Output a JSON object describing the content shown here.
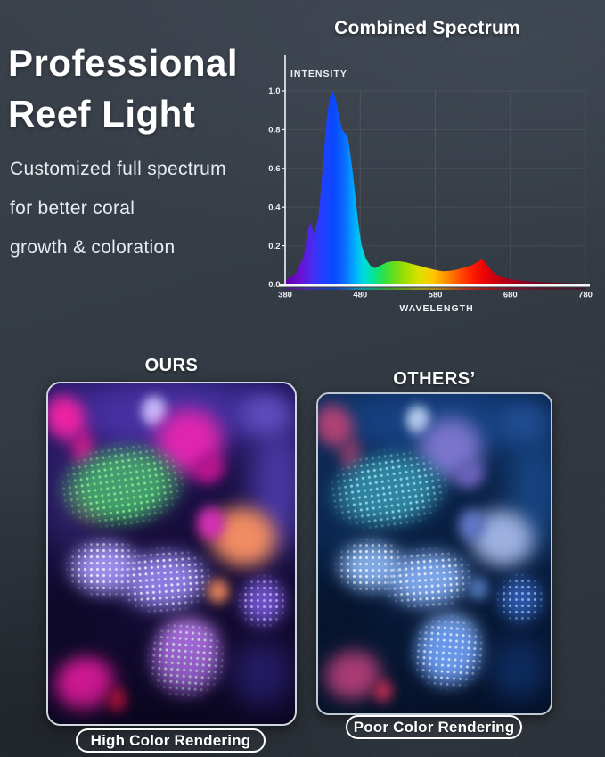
{
  "headline": {
    "line1": "Professional",
    "line2": "Reef Light"
  },
  "subtitle": [
    "Customized full spectrum",
    "for better coral",
    "growth & coloration"
  ],
  "chart_data": {
    "type": "area",
    "title": "Combined Spectrum",
    "xlabel": "WAVELENGTH",
    "ylabel": "INTENSITY",
    "xlim": [
      380,
      780
    ],
    "ylim": [
      0.0,
      1.0
    ],
    "xticks": [
      "380",
      "480",
      "580",
      "680",
      "780"
    ],
    "yticks": [
      "0.0",
      "0.2",
      "0.4",
      "0.6",
      "0.8",
      "1.0"
    ],
    "grid": "faint white gridlines",
    "legend": "none",
    "x": [
      380,
      395,
      405,
      410,
      414,
      418,
      424,
      428,
      432,
      436,
      440,
      444,
      448,
      452,
      456,
      460,
      463,
      466,
      470,
      474,
      478,
      482,
      488,
      494,
      500,
      508,
      516,
      524,
      532,
      540,
      550,
      560,
      570,
      580,
      590,
      600,
      610,
      620,
      628,
      636,
      642,
      646,
      652,
      658,
      666,
      674,
      684,
      700,
      720,
      750,
      780
    ],
    "y": [
      0.02,
      0.06,
      0.15,
      0.28,
      0.32,
      0.26,
      0.34,
      0.5,
      0.7,
      0.88,
      0.97,
      1.0,
      0.95,
      0.86,
      0.8,
      0.78,
      0.77,
      0.7,
      0.58,
      0.44,
      0.3,
      0.2,
      0.13,
      0.095,
      0.085,
      0.1,
      0.115,
      0.12,
      0.12,
      0.115,
      0.105,
      0.095,
      0.085,
      0.075,
      0.068,
      0.07,
      0.078,
      0.088,
      0.098,
      0.115,
      0.13,
      0.115,
      0.085,
      0.06,
      0.042,
      0.032,
      0.025,
      0.018,
      0.012,
      0.008,
      0.005
    ],
    "fill_gradient_stops": [
      [
        380,
        "#5e00a8"
      ],
      [
        400,
        "#6a10d0"
      ],
      [
        415,
        "#4a2af0"
      ],
      [
        430,
        "#2040ff"
      ],
      [
        445,
        "#0848ff"
      ],
      [
        460,
        "#0a70ff"
      ],
      [
        472,
        "#00aaff"
      ],
      [
        484,
        "#00d8e0"
      ],
      [
        496,
        "#00e4a0"
      ],
      [
        510,
        "#28e050"
      ],
      [
        525,
        "#66dd1a"
      ],
      [
        542,
        "#a6de00"
      ],
      [
        560,
        "#e0e000"
      ],
      [
        578,
        "#ffc400"
      ],
      [
        596,
        "#ff8a00"
      ],
      [
        612,
        "#ff5000"
      ],
      [
        628,
        "#ff2000"
      ],
      [
        644,
        "#ee0404"
      ],
      [
        660,
        "#cc0010"
      ],
      [
        680,
        "#a80018"
      ],
      [
        710,
        "#800020"
      ],
      [
        780,
        "#500022"
      ]
    ],
    "axis_color": "#ffffff",
    "peak_wavelength_nm": 444
  },
  "comparison": {
    "ours": {
      "title": "OURS",
      "badge": "High Color Rendering"
    },
    "others": {
      "title": "OTHERS’",
      "badge": "Poor Color Rendering"
    }
  },
  "coral_scene_palette": {
    "rock-top-band": {
      "ours": "#41309b",
      "others": "#164181"
    },
    "rock-left-column": {
      "ours": "#2a1f62",
      "others": "#0d2b57"
    },
    "rock-right-column": {
      "ours": "#4a38a4",
      "others": "#174582"
    },
    "feather-coral": {
      "ours": "#cfc6ff",
      "others": "#bcd2f2"
    },
    "magenta-leather": {
      "ours": "#e224ac",
      "others": "#7a74cc"
    },
    "leather-fold": {
      "ours": "#b8148c",
      "others": "#6a62ba"
    },
    "pink-top-left": {
      "ours": "#f0219f",
      "others": "#b04273"
    },
    "pink-tail": {
      "ours": "#cf1787",
      "others": "#8f3b69"
    },
    "purple-ridge": {
      "ours": "#5d4cba",
      "others": "#1f4c90"
    },
    "maroon-patch": {
      "ours": "#6e2b52",
      "others": "#153259"
    },
    "green-coral": {
      "ours": "#3da463",
      "others": "#2f84a0",
      "dots_ours": "#90ff90",
      "dots_others": "#aaeaff"
    },
    "chalice-salmon": {
      "ours": "#f08c63",
      "others": "#9cb0e0"
    },
    "magenta-flower": {
      "ours": "#d52fb6",
      "others": "#6076c8"
    },
    "lavender-left": {
      "ours": "#9c8deb",
      "others": "#81aae4",
      "dots_ours": "#ffffff",
      "dots_others": "#ffffff"
    },
    "lavender-mid": {
      "ours": "#8b7bdf",
      "others": "#7ba4e8",
      "dots_ours": "#ffffff",
      "dots_others": "#ffffff"
    },
    "purple-knobs": {
      "ours": "#6c50c6",
      "others": "#2c57a8",
      "dots_ours": "#c9b8ff",
      "dots_others": "#9fc6f6"
    },
    "orange-bit": {
      "ours": "#e8845c",
      "others": "#5278bc"
    },
    "toadstool-glow": {
      "ours": "#c78bf0",
      "others": "#8ab4f0"
    },
    "toadstool": {
      "ours": "#a96ae1",
      "others": "#6896e8",
      "dots_ours": "#d8ffe9",
      "dots_others": "#eaf5ff"
    },
    "magenta-bottom": {
      "ours": "#ec1ba4",
      "others": "#a83b74"
    },
    "red-bit": {
      "ours": "#cd1543",
      "others": "#b92c52"
    },
    "blue-glow-br": {
      "ours": "#2b2174",
      "others": "#0f2e64"
    },
    "dark-bl": {
      "ours": "#0e0928",
      "others": "#06142c"
    }
  },
  "colors": {
    "page_bg": "#343b44",
    "text": "#ffffff",
    "subtext": "#e9ecef",
    "panel_border": "#d2d7de"
  }
}
